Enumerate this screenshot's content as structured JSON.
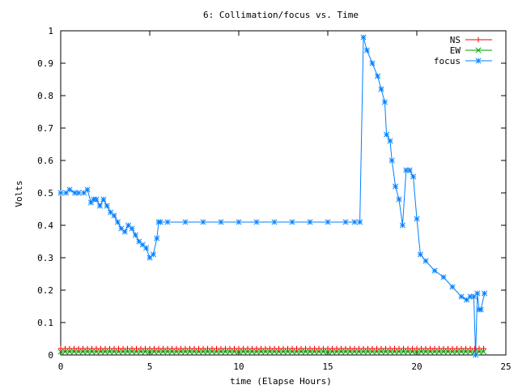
{
  "chart_data": {
    "type": "line",
    "title": "6: Collimation/focus vs. Time",
    "xlabel": "time (Elapse Hours)",
    "ylabel": "Volts",
    "xlim": [
      0,
      25
    ],
    "ylim": [
      0,
      1
    ],
    "xticks": [
      0,
      5,
      10,
      15,
      20,
      25
    ],
    "yticks": [
      0,
      0.1,
      0.2,
      0.3,
      0.4,
      0.5,
      0.6,
      0.7,
      0.8,
      0.9,
      1
    ],
    "xtick_labels": [
      "0",
      "5",
      "10",
      "15",
      "20",
      "25"
    ],
    "ytick_labels": [
      "0",
      "0.1",
      "0.2",
      "0.3",
      "0.4",
      "0.5",
      "0.6",
      "0.7",
      "0.8",
      "0.9",
      "1"
    ],
    "grid": false,
    "legend_position": "top-right",
    "series": [
      {
        "name": "NS",
        "color": "#ff0000",
        "marker": "plus",
        "x_range": [
          0,
          23.9
        ],
        "x_step": 0.25,
        "y_const": 0.02
      },
      {
        "name": "EW",
        "color": "#00a000",
        "marker": "cross",
        "x_range": [
          0,
          23.9
        ],
        "x_step": 0.25,
        "y_const": 0.01
      },
      {
        "name": "focus",
        "color": "#0080ff",
        "marker": "star",
        "x": [
          0,
          0.3,
          0.5,
          0.8,
          1.0,
          1.3,
          1.5,
          1.7,
          1.85,
          2.0,
          2.2,
          2.4,
          2.6,
          2.8,
          3.0,
          3.2,
          3.4,
          3.6,
          3.8,
          4.0,
          4.2,
          4.4,
          4.6,
          4.8,
          5.0,
          5.2,
          5.4,
          5.5,
          5.6,
          6,
          7,
          8,
          9,
          10,
          11,
          12,
          13,
          14,
          15,
          16,
          16.5,
          16.8,
          17.0,
          17.2,
          17.5,
          17.8,
          18.0,
          18.2,
          18.3,
          18.5,
          18.6,
          18.8,
          19.0,
          19.2,
          19.4,
          19.6,
          19.8,
          20.0,
          20.2,
          20.5,
          21.0,
          21.5,
          22.0,
          22.5,
          22.8,
          23.0,
          23.2,
          23.3,
          23.4,
          23.5,
          23.6,
          23.8
        ],
        "y": [
          0.5,
          0.5,
          0.51,
          0.5,
          0.5,
          0.5,
          0.51,
          0.47,
          0.48,
          0.48,
          0.46,
          0.48,
          0.46,
          0.44,
          0.43,
          0.41,
          0.39,
          0.38,
          0.4,
          0.39,
          0.37,
          0.35,
          0.34,
          0.33,
          0.3,
          0.31,
          0.36,
          0.41,
          0.41,
          0.41,
          0.41,
          0.41,
          0.41,
          0.41,
          0.41,
          0.41,
          0.41,
          0.41,
          0.41,
          0.41,
          0.41,
          0.41,
          0.98,
          0.94,
          0.9,
          0.86,
          0.82,
          0.78,
          0.68,
          0.66,
          0.6,
          0.52,
          0.48,
          0.4,
          0.57,
          0.57,
          0.55,
          0.42,
          0.31,
          0.29,
          0.26,
          0.24,
          0.21,
          0.18,
          0.17,
          0.18,
          0.18,
          0.0,
          0.19,
          0.14,
          0.14,
          0.19
        ]
      }
    ]
  }
}
